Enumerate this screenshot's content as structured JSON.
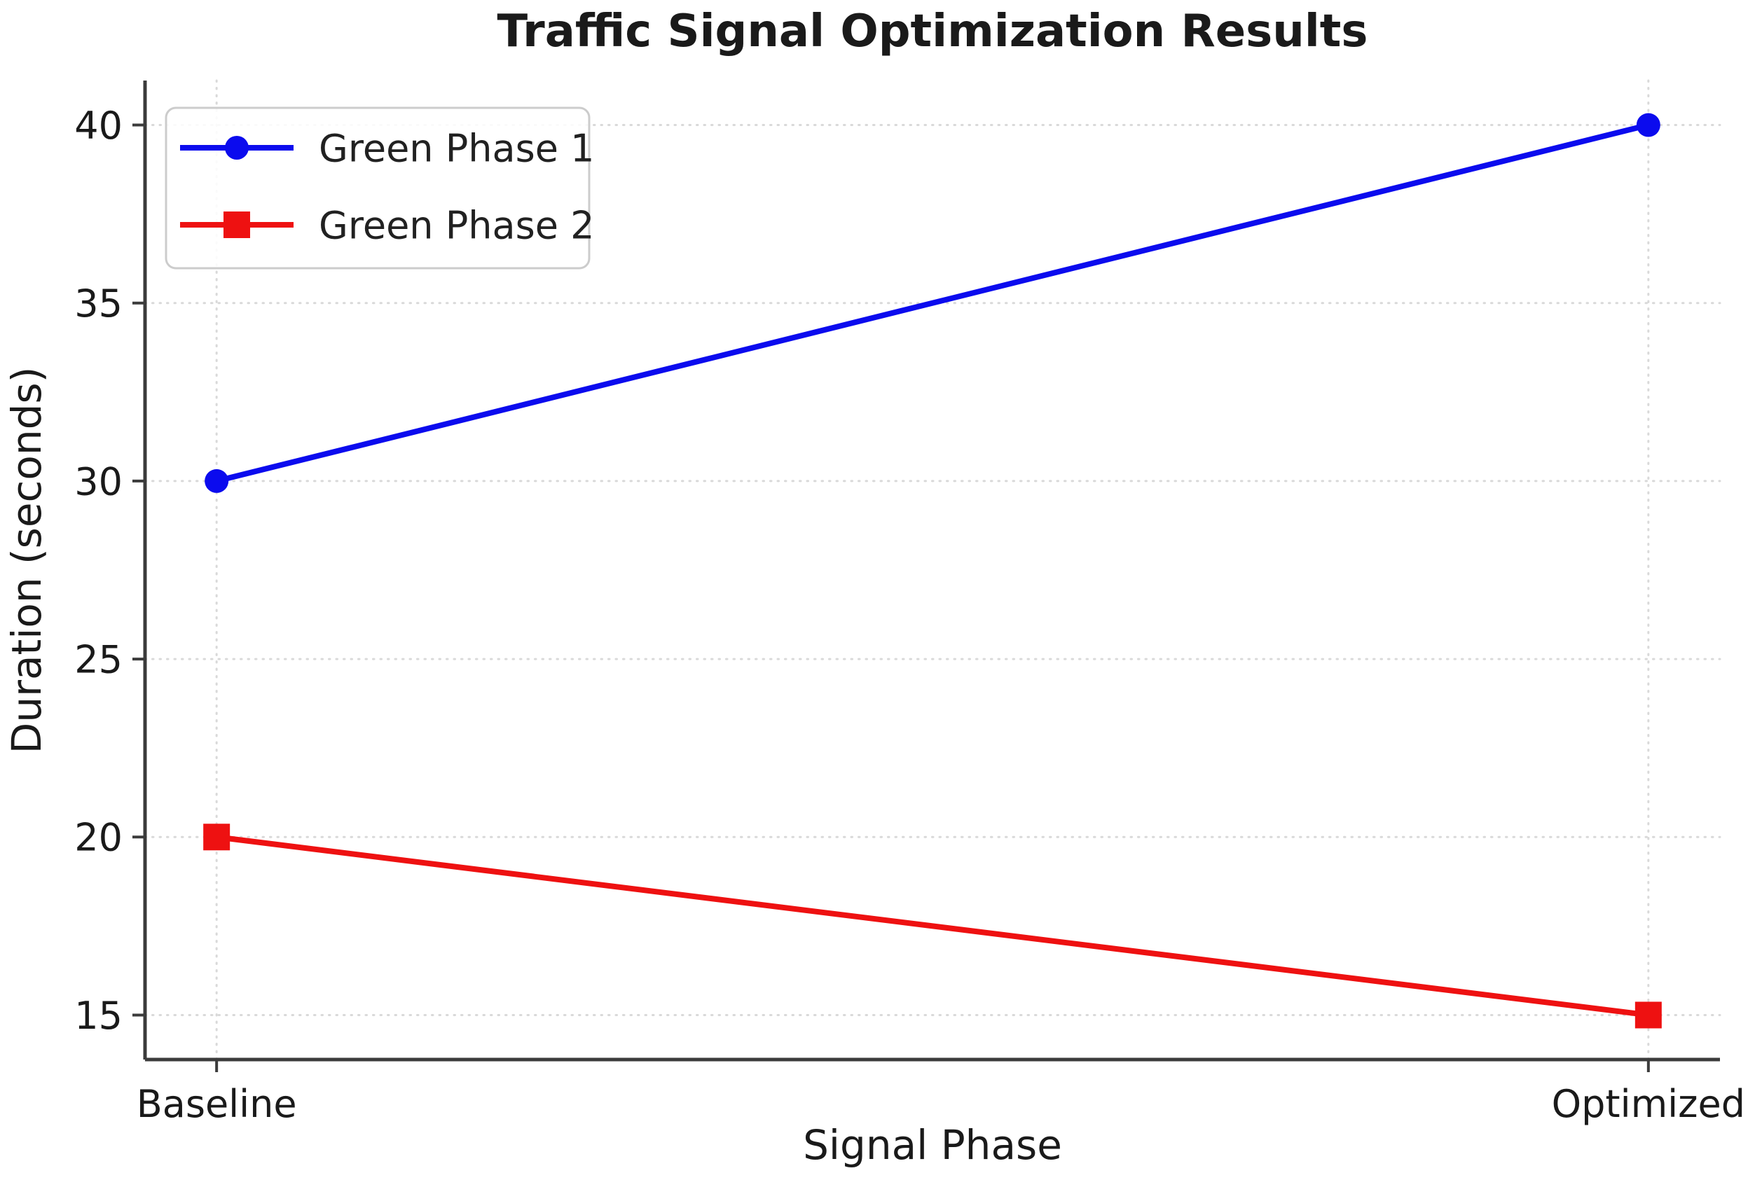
{
  "chart_data": {
    "type": "line",
    "title": "Traffic Signal Optimization Results",
    "xlabel": "Signal Phase",
    "ylabel": "Duration (seconds)",
    "categories": [
      "Baseline",
      "Optimized"
    ],
    "series": [
      {
        "name": "Green Phase 1",
        "values": [
          30,
          40
        ],
        "color": "#0b0bee",
        "marker": "circle"
      },
      {
        "name": "Green Phase 2",
        "values": [
          20,
          15
        ],
        "color": "#ee1111",
        "marker": "square"
      }
    ],
    "yticks": [
      15,
      20,
      25,
      30,
      35,
      40
    ],
    "ylim": [
      13.75,
      41.25
    ],
    "grid": true,
    "grid_style": "dotted",
    "legend_position": "upper left"
  },
  "colors": {
    "background": "#ffffff",
    "spine": "#3b3b3b",
    "tick": "#3b3b3b",
    "grid": "#d9d9d9",
    "text": "#1a1a1a",
    "legend_border": "#cccccc",
    "legend_bg": "#ffffff"
  }
}
